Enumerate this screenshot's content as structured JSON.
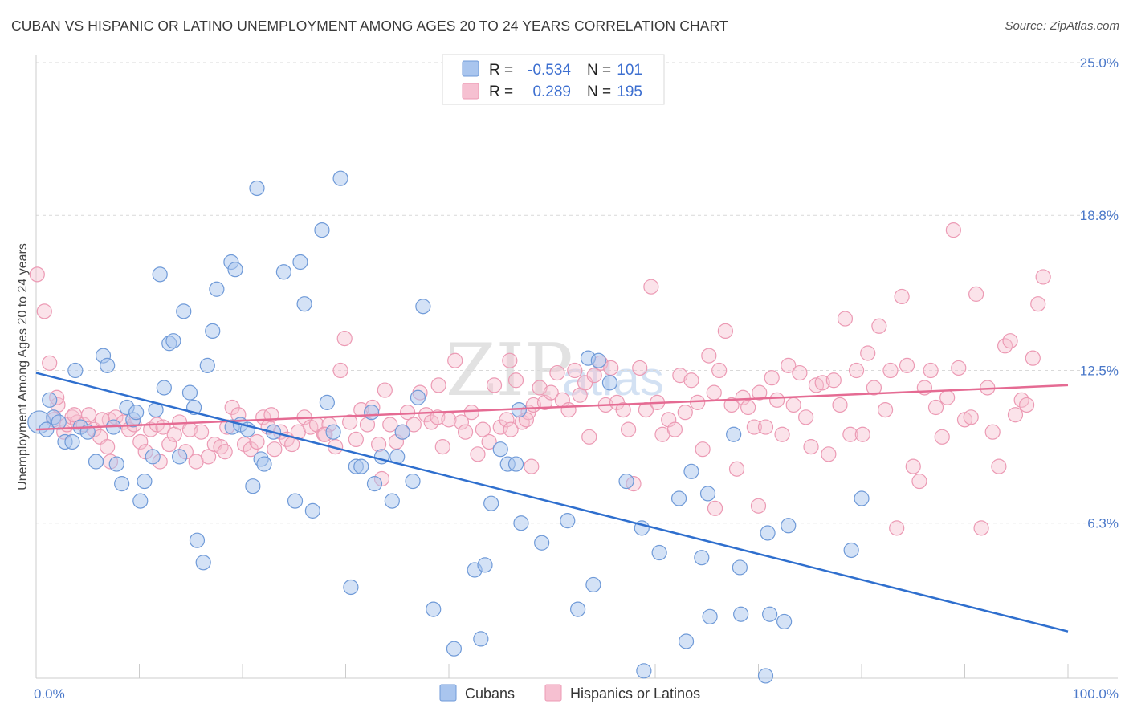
{
  "title": "CUBAN VS HISPANIC OR LATINO UNEMPLOYMENT AMONG AGES 20 TO 24 YEARS CORRELATION CHART",
  "source": "Source: ZipAtlas.com",
  "watermark": {
    "part1": "ZIP",
    "part2": "atlas"
  },
  "colors": {
    "blue_fill": "#a9c5ee",
    "blue_stroke": "#6f9ad8",
    "blue_line": "#2f6fce",
    "pink_fill": "#f6c0d1",
    "pink_stroke": "#ec9ab4",
    "pink_line": "#e56b93",
    "grid": "#d9d9d9",
    "axis_text": "#4a78c9"
  },
  "legend": {
    "row1": {
      "r_label": "R =",
      "r_value": "-0.534",
      "n_label": "N =",
      "n_value": "101"
    },
    "row2": {
      "r_label": "R =",
      "r_value": "0.289",
      "n_label": "N =",
      "n_value": "195"
    }
  },
  "chart_data": {
    "type": "scatter",
    "title": "CUBAN VS HISPANIC OR LATINO UNEMPLOYMENT AMONG AGES 20 TO 24 YEARS CORRELATION CHART",
    "xlabel": "",
    "ylabel": "Unemployment Among Ages 20 to 24 years",
    "xlim": [
      0,
      100
    ],
    "ylim": [
      0,
      26
    ],
    "x_tick_labels": [
      "0.0%",
      "100.0%"
    ],
    "y_ticks": [
      6.3,
      12.5,
      18.8,
      25.0
    ],
    "y_tick_labels": [
      "6.3%",
      "12.5%",
      "18.8%",
      "25.0%"
    ],
    "grid": true,
    "legend_position": "top-center",
    "series": [
      {
        "name": "Cubans",
        "r": -0.534,
        "n": 101,
        "trend": {
          "x": [
            0,
            100
          ],
          "y": [
            12.4,
            1.9
          ]
        },
        "points": [
          [
            0.3,
            10.4
          ],
          [
            1.0,
            10.1
          ],
          [
            1.3,
            11.3
          ],
          [
            1.7,
            10.6
          ],
          [
            2.2,
            10.4
          ],
          [
            2.8,
            9.6
          ],
          [
            3.5,
            9.6
          ],
          [
            3.8,
            12.5
          ],
          [
            4.3,
            10.2
          ],
          [
            5.0,
            10.0
          ],
          [
            5.8,
            8.8
          ],
          [
            6.5,
            13.1
          ],
          [
            6.9,
            12.7
          ],
          [
            7.5,
            10.2
          ],
          [
            7.8,
            8.7
          ],
          [
            8.3,
            7.9
          ],
          [
            8.8,
            11.0
          ],
          [
            9.4,
            10.5
          ],
          [
            9.7,
            10.8
          ],
          [
            10.1,
            7.2
          ],
          [
            10.5,
            8.0
          ],
          [
            11.3,
            9.0
          ],
          [
            11.6,
            10.9
          ],
          [
            12.0,
            16.4
          ],
          [
            12.4,
            11.8
          ],
          [
            12.9,
            13.6
          ],
          [
            13.3,
            13.7
          ],
          [
            13.9,
            9.0
          ],
          [
            14.3,
            14.9
          ],
          [
            14.9,
            11.6
          ],
          [
            15.3,
            11.0
          ],
          [
            15.6,
            5.6
          ],
          [
            16.2,
            4.7
          ],
          [
            16.6,
            12.7
          ],
          [
            17.1,
            14.1
          ],
          [
            17.5,
            15.8
          ],
          [
            18.9,
            16.9
          ],
          [
            19.0,
            10.2
          ],
          [
            19.3,
            16.6
          ],
          [
            19.8,
            10.3
          ],
          [
            20.5,
            10.1
          ],
          [
            21.0,
            7.8
          ],
          [
            21.4,
            19.9
          ],
          [
            21.8,
            8.9
          ],
          [
            22.1,
            8.7
          ],
          [
            23.0,
            10.0
          ],
          [
            24.0,
            16.5
          ],
          [
            25.1,
            7.2
          ],
          [
            25.6,
            16.9
          ],
          [
            26.0,
            15.2
          ],
          [
            26.8,
            6.8
          ],
          [
            27.7,
            18.2
          ],
          [
            28.2,
            11.2
          ],
          [
            28.8,
            10.0
          ],
          [
            29.5,
            20.3
          ],
          [
            30.5,
            3.7
          ],
          [
            31.0,
            8.6
          ],
          [
            31.5,
            8.6
          ],
          [
            32.5,
            10.8
          ],
          [
            32.8,
            7.9
          ],
          [
            33.5,
            9.0
          ],
          [
            34.5,
            7.2
          ],
          [
            35.0,
            9.0
          ],
          [
            35.5,
            10.0
          ],
          [
            36.5,
            8.0
          ],
          [
            37.0,
            11.4
          ],
          [
            37.5,
            15.1
          ],
          [
            38.5,
            2.8
          ],
          [
            40.5,
            1.2
          ],
          [
            42.5,
            4.4
          ],
          [
            43.1,
            1.6
          ],
          [
            43.5,
            4.6
          ],
          [
            44.1,
            7.1
          ],
          [
            45.0,
            9.3
          ],
          [
            45.7,
            8.7
          ],
          [
            46.5,
            8.7
          ],
          [
            46.8,
            10.9
          ],
          [
            47.0,
            6.3
          ],
          [
            49.0,
            5.5
          ],
          [
            51.5,
            6.4
          ],
          [
            52.5,
            2.8
          ],
          [
            53.5,
            13.0
          ],
          [
            54.0,
            3.8
          ],
          [
            54.5,
            12.9
          ],
          [
            55.6,
            12.0
          ],
          [
            57.2,
            8.0
          ],
          [
            58.7,
            6.1
          ],
          [
            58.9,
            0.3
          ],
          [
            60.4,
            5.1
          ],
          [
            62.3,
            7.3
          ],
          [
            63.0,
            1.5
          ],
          [
            63.5,
            8.4
          ],
          [
            64.5,
            4.9
          ],
          [
            65.1,
            7.5
          ],
          [
            65.3,
            2.5
          ],
          [
            67.6,
            9.9
          ],
          [
            68.2,
            4.5
          ],
          [
            68.3,
            2.6
          ],
          [
            70.7,
            0.1
          ],
          [
            70.9,
            5.9
          ],
          [
            71.1,
            2.6
          ],
          [
            72.5,
            2.3
          ],
          [
            72.9,
            6.2
          ],
          [
            79.0,
            5.2
          ],
          [
            80.0,
            7.3
          ]
        ]
      },
      {
        "name": "Hispanics or Latinos",
        "r": 0.289,
        "n": 195,
        "trend": {
          "x": [
            0,
            100
          ],
          "y": [
            10.1,
            11.9
          ]
        },
        "points": [
          [
            0.1,
            16.4
          ],
          [
            0.8,
            14.9
          ],
          [
            1.3,
            12.8
          ],
          [
            1.7,
            10.5
          ],
          [
            2.1,
            11.1
          ],
          [
            2.7,
            10.0
          ],
          [
            3.0,
            10.3
          ],
          [
            3.5,
            10.6
          ],
          [
            4.0,
            10.4
          ],
          [
            4.6,
            10.3
          ],
          [
            5.1,
            10.7
          ],
          [
            5.6,
            10.1
          ],
          [
            6.2,
            9.8
          ],
          [
            6.9,
            9.4
          ],
          [
            7.1,
            10.5
          ],
          [
            7.7,
            10.6
          ],
          [
            8.5,
            10.4
          ],
          [
            9.0,
            10.1
          ],
          [
            9.5,
            10.3
          ],
          [
            10.1,
            9.6
          ],
          [
            10.6,
            9.2
          ],
          [
            11.1,
            10.1
          ],
          [
            11.7,
            10.3
          ],
          [
            12.3,
            10.2
          ],
          [
            12.9,
            9.5
          ],
          [
            13.4,
            9.9
          ],
          [
            13.9,
            10.4
          ],
          [
            14.5,
            9.2
          ],
          [
            14.9,
            10.1
          ],
          [
            15.5,
            8.8
          ],
          [
            16.0,
            10.0
          ],
          [
            16.7,
            9.0
          ],
          [
            17.3,
            9.5
          ],
          [
            17.9,
            9.4
          ],
          [
            18.5,
            10.2
          ],
          [
            19.0,
            11.0
          ],
          [
            19.6,
            10.7
          ],
          [
            20.2,
            9.5
          ],
          [
            20.8,
            9.3
          ],
          [
            21.4,
            9.6
          ],
          [
            22.0,
            10.6
          ],
          [
            22.5,
            10.2
          ],
          [
            23.1,
            9.3
          ],
          [
            23.7,
            10.0
          ],
          [
            24.3,
            9.7
          ],
          [
            24.8,
            9.5
          ],
          [
            25.4,
            10.0
          ],
          [
            26.0,
            10.6
          ],
          [
            26.6,
            10.2
          ],
          [
            27.2,
            10.3
          ],
          [
            27.9,
            9.9
          ],
          [
            28.4,
            10.3
          ],
          [
            29.0,
            9.4
          ],
          [
            29.5,
            12.5
          ],
          [
            29.9,
            13.8
          ],
          [
            30.4,
            10.4
          ],
          [
            31.0,
            9.7
          ],
          [
            31.5,
            10.9
          ],
          [
            32.1,
            10.3
          ],
          [
            32.6,
            11.0
          ],
          [
            33.2,
            9.5
          ],
          [
            33.8,
            11.7
          ],
          [
            34.3,
            10.3
          ],
          [
            34.9,
            9.6
          ],
          [
            35.5,
            10.0
          ],
          [
            36.0,
            10.8
          ],
          [
            36.6,
            10.3
          ],
          [
            37.2,
            11.6
          ],
          [
            37.8,
            10.7
          ],
          [
            38.3,
            10.4
          ],
          [
            38.9,
            10.6
          ],
          [
            39.4,
            9.4
          ],
          [
            40.0,
            10.5
          ],
          [
            40.6,
            12.9
          ],
          [
            41.2,
            10.4
          ],
          [
            41.6,
            10.0
          ],
          [
            42.2,
            10.8
          ],
          [
            42.8,
            9.1
          ],
          [
            43.3,
            10.1
          ],
          [
            43.9,
            9.6
          ],
          [
            44.4,
            11.9
          ],
          [
            45.0,
            10.2
          ],
          [
            45.6,
            10.5
          ],
          [
            46.0,
            10.1
          ],
          [
            46.5,
            12.1
          ],
          [
            47.1,
            10.4
          ],
          [
            47.7,
            10.8
          ],
          [
            48.2,
            11.1
          ],
          [
            48.8,
            11.8
          ],
          [
            49.3,
            11.2
          ],
          [
            49.9,
            11.6
          ],
          [
            50.5,
            12.4
          ],
          [
            51.0,
            11.3
          ],
          [
            51.6,
            10.9
          ],
          [
            52.2,
            12.5
          ],
          [
            52.7,
            11.5
          ],
          [
            53.2,
            12.0
          ],
          [
            53.6,
            9.8
          ],
          [
            54.1,
            12.3
          ],
          [
            54.7,
            12.8
          ],
          [
            55.2,
            11.1
          ],
          [
            55.7,
            12.6
          ],
          [
            56.3,
            11.2
          ],
          [
            56.9,
            10.9
          ],
          [
            57.4,
            10.1
          ],
          [
            57.9,
            7.9
          ],
          [
            58.5,
            12.6
          ],
          [
            59.1,
            10.9
          ],
          [
            59.6,
            15.9
          ],
          [
            60.2,
            11.2
          ],
          [
            60.7,
            9.9
          ],
          [
            61.3,
            10.5
          ],
          [
            61.9,
            10.1
          ],
          [
            62.4,
            12.3
          ],
          [
            62.9,
            10.8
          ],
          [
            63.5,
            12.1
          ],
          [
            64.1,
            11.2
          ],
          [
            64.6,
            9.3
          ],
          [
            65.2,
            13.1
          ],
          [
            65.7,
            11.6
          ],
          [
            66.2,
            12.5
          ],
          [
            66.8,
            14.1
          ],
          [
            67.4,
            11.1
          ],
          [
            67.9,
            8.5
          ],
          [
            68.5,
            11.4
          ],
          [
            69.0,
            11.0
          ],
          [
            69.6,
            10.2
          ],
          [
            70.1,
            11.6
          ],
          [
            70.7,
            10.2
          ],
          [
            71.3,
            12.2
          ],
          [
            71.8,
            11.3
          ],
          [
            72.3,
            9.9
          ],
          [
            72.9,
            12.7
          ],
          [
            73.4,
            11.1
          ],
          [
            74.0,
            12.4
          ],
          [
            74.6,
            10.6
          ],
          [
            75.1,
            9.4
          ],
          [
            75.6,
            11.9
          ],
          [
            76.2,
            12.0
          ],
          [
            76.8,
            9.1
          ],
          [
            77.3,
            12.1
          ],
          [
            77.9,
            11.1
          ],
          [
            78.4,
            14.6
          ],
          [
            78.9,
            9.9
          ],
          [
            79.5,
            12.5
          ],
          [
            80.1,
            9.9
          ],
          [
            80.6,
            13.2
          ],
          [
            81.2,
            11.8
          ],
          [
            81.7,
            14.3
          ],
          [
            82.3,
            10.9
          ],
          [
            82.8,
            12.5
          ],
          [
            83.4,
            6.1
          ],
          [
            83.9,
            15.5
          ],
          [
            84.4,
            12.7
          ],
          [
            85.0,
            8.6
          ],
          [
            85.6,
            8.0
          ],
          [
            86.1,
            11.8
          ],
          [
            86.7,
            12.5
          ],
          [
            87.2,
            11.0
          ],
          [
            87.8,
            9.8
          ],
          [
            88.3,
            11.4
          ],
          [
            88.9,
            18.2
          ],
          [
            89.4,
            12.6
          ],
          [
            90.0,
            10.5
          ],
          [
            90.6,
            10.6
          ],
          [
            91.1,
            15.6
          ],
          [
            91.6,
            6.1
          ],
          [
            92.2,
            11.8
          ],
          [
            92.7,
            10.0
          ],
          [
            93.3,
            8.6
          ],
          [
            93.9,
            13.5
          ],
          [
            94.4,
            13.7
          ],
          [
            94.9,
            10.7
          ],
          [
            95.5,
            11.3
          ],
          [
            96.0,
            11.1
          ],
          [
            96.6,
            13.0
          ],
          [
            97.1,
            15.2
          ],
          [
            97.6,
            16.3
          ],
          [
            70.0,
            7.0
          ],
          [
            65.8,
            6.9
          ],
          [
            45.9,
            12.9
          ],
          [
            39.0,
            11.9
          ],
          [
            33.5,
            8.1
          ],
          [
            28.0,
            9.9
          ],
          [
            18.3,
            9.2
          ],
          [
            12.0,
            8.8
          ],
          [
            7.2,
            8.8
          ],
          [
            3.7,
            10.7
          ],
          [
            2.0,
            11.4
          ],
          [
            6.4,
            10.5
          ],
          [
            22.8,
            10.7
          ],
          [
            47.5,
            10.5
          ],
          [
            48.0,
            8.6
          ]
        ]
      }
    ]
  },
  "bottom_legend": {
    "item1": "Cubans",
    "item2": "Hispanics or Latinos"
  }
}
